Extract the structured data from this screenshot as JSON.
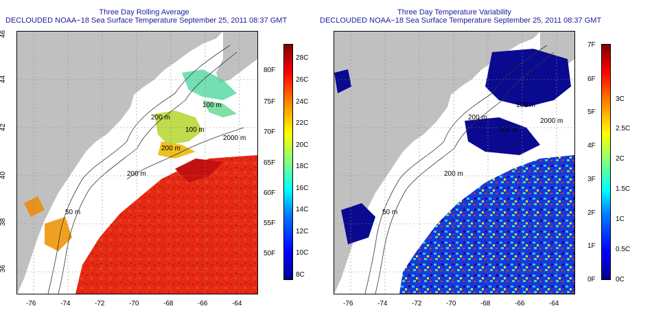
{
  "panels": [
    {
      "title_line1": "Three Day Rolling Average",
      "title_line2": "DECLOUDED NOAA−18 Sea Surface Temperature September 25, 2011 08:37 GMT",
      "x_ticks": [
        "-76",
        "-74",
        "-72",
        "-70",
        "-68",
        "-66",
        "-64"
      ],
      "y_ticks": [
        "36",
        "38",
        "40",
        "42",
        "44",
        "46"
      ],
      "isobaths": [
        "100 m",
        "2000 m",
        "200 m",
        "100 m",
        "200 m",
        "200 m",
        "50 m"
      ],
      "colorbar_left": [
        "80F",
        "75F",
        "70F",
        "65F",
        "60F",
        "55F",
        "50F"
      ],
      "colorbar_right": [
        "28C",
        "26C",
        "24C",
        "22C",
        "20C",
        "18C",
        "16C",
        "14C",
        "12C",
        "10C",
        "8C"
      ],
      "colors": {
        "warm": "#e82a12",
        "deep_red": "#c41010",
        "land": "#c0c0c0"
      }
    },
    {
      "title_line1": "Three Day Temperature Variability",
      "title_line2": "DECLOUDED NOAA−18 Sea Surface Temperature September 25, 2011 08:37 GMT",
      "x_ticks": [
        "-76",
        "-74",
        "-72",
        "-70",
        "-68",
        "-66",
        "-64"
      ],
      "isobaths": [
        "100 m",
        "2000 m",
        "100 m",
        "200 m",
        "200 m",
        "50 m"
      ],
      "colorbar_left": [
        "7F",
        "6F",
        "5F",
        "4F",
        "3F",
        "2F",
        "1F",
        "0F"
      ],
      "colorbar_right": [
        "3C",
        "2.5C",
        "2C",
        "1.5C",
        "1C",
        "0.5C",
        "0C"
      ],
      "colors": {
        "low": "#0a0a90",
        "mid": "#30c0ff",
        "high": "#ff3010",
        "land": "#c0c0c0"
      }
    }
  ]
}
